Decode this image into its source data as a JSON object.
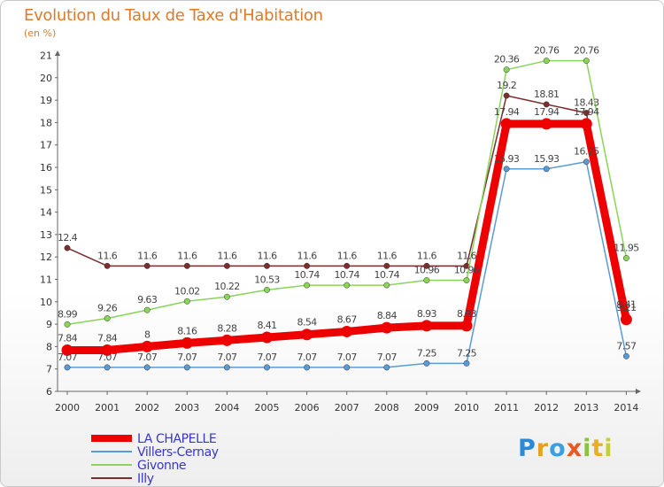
{
  "header": {
    "title": "Evolution du Taux de Taxe d'Habitation",
    "subtitle": "(en %)"
  },
  "logo": {
    "text": "Proxiti"
  },
  "colors": {
    "LA CHAPELLE": "#ee0000",
    "Villers-Cernay": "#5b9bd5",
    "Givonne": "#8ad45a",
    "Illy": "#7a2e2e",
    "title": "#e07a2a",
    "axis": "#666666",
    "grid": "#dddddd"
  },
  "chart_data": {
    "type": "line",
    "title": "Evolution du Taux de Taxe d'Habitation",
    "subtitle": "(en %)",
    "xlabel": "",
    "ylabel": "(en %)",
    "x": [
      "2000",
      "2001",
      "2002",
      "2003",
      "2004",
      "2005",
      "2006",
      "2007",
      "2008",
      "2009",
      "2010",
      "2011",
      "2012",
      "2013",
      "2014"
    ],
    "ylim": [
      6,
      21
    ],
    "yticks": [
      6,
      7,
      8,
      9,
      10,
      11,
      12,
      13,
      14,
      15,
      16,
      17,
      18,
      19,
      20,
      21
    ],
    "grid": false,
    "legend": "bottom-left",
    "series": [
      {
        "name": "Illy",
        "color": "#7a2e2e",
        "values": [
          12.4,
          11.6,
          11.6,
          11.6,
          11.6,
          11.6,
          11.6,
          11.6,
          11.6,
          11.6,
          11.6,
          19.2,
          18.81,
          18.43,
          9.41
        ],
        "labels": [
          "12.4",
          "11.6",
          "11.6",
          "11.6",
          "11.6",
          "11.6",
          "11.6",
          "11.6",
          "11.6",
          "11.6",
          "11.6",
          "19.2",
          "18.81",
          "18.43",
          "9.41"
        ]
      },
      {
        "name": "Givonne",
        "color": "#8ad45a",
        "values": [
          8.99,
          9.26,
          9.63,
          10.02,
          10.22,
          10.53,
          10.74,
          10.74,
          10.74,
          10.96,
          10.96,
          20.36,
          20.76,
          20.76,
          11.95
        ],
        "labels": [
          "8.99",
          "9.26",
          "9.63",
          "10.02",
          "10.22",
          "10.53",
          "10.74",
          "10.74",
          "10.74",
          "10.96",
          "10.96",
          "20.36",
          "20.76",
          "20.76",
          "11.95"
        ]
      },
      {
        "name": "Villers-Cernay",
        "color": "#5b9bd5",
        "values": [
          7.07,
          7.07,
          7.07,
          7.07,
          7.07,
          7.07,
          7.07,
          7.07,
          7.07,
          7.25,
          7.25,
          15.93,
          15.93,
          16.25,
          7.57
        ],
        "labels": [
          "7.07",
          "7.07",
          "7.07",
          "7.07",
          "7.07",
          "7.07",
          "7.07",
          "7.07",
          "7.07",
          "7.25",
          "7.25",
          "15.93",
          "15.93",
          "16.25",
          "7.57"
        ]
      },
      {
        "name": "LA CHAPELLE",
        "color": "#ee0000",
        "values": [
          7.84,
          7.84,
          8,
          8.16,
          8.28,
          8.41,
          8.54,
          8.67,
          8.84,
          8.93,
          8.93,
          17.94,
          17.94,
          17.94,
          9.21
        ],
        "labels": [
          "7.84",
          "7.84",
          "8",
          "8.16",
          "8.28",
          "8.41",
          "8.54",
          "8.67",
          "8.84",
          "8.93",
          "8.93",
          "17.94",
          "17.94",
          "17.94",
          "9.21"
        ]
      }
    ],
    "legend_entries": [
      "LA CHAPELLE",
      "Villers-Cernay",
      "Givonne",
      "Illy"
    ]
  }
}
